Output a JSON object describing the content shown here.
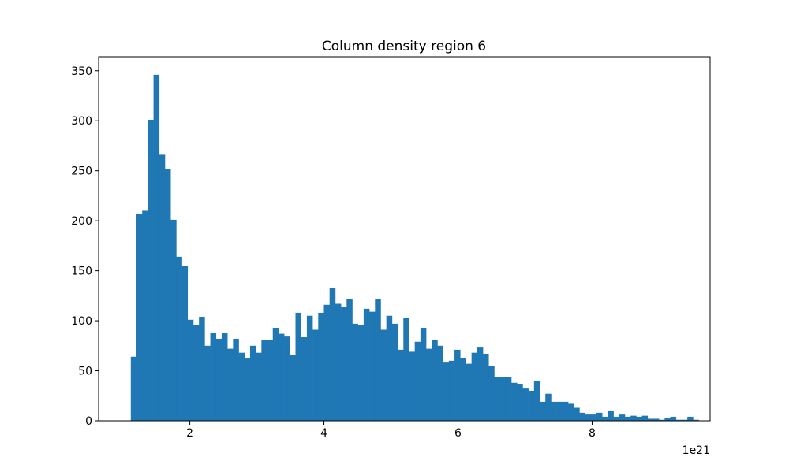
{
  "colors": {
    "bar": "#1f77b4",
    "axes": "#000000",
    "background": "#ffffff"
  },
  "chart_data": {
    "type": "bar",
    "histogram": true,
    "title": "Column density region 6",
    "xlabel": "",
    "ylabel": "",
    "x_offset_text": "1e21",
    "xlim": [
      0.64,
      9.76
    ],
    "ylim": [
      0,
      364
    ],
    "xticks": [
      2,
      4,
      6,
      8
    ],
    "yticks": [
      0,
      50,
      100,
      150,
      200,
      250,
      300,
      350
    ],
    "legend": "none",
    "grid": false,
    "bin_start": 1.12,
    "bin_width": 0.0847,
    "values": [
      64,
      207,
      210,
      301,
      346,
      266,
      252,
      201,
      164,
      155,
      101,
      96,
      104,
      75,
      88,
      82,
      88,
      72,
      82,
      68,
      63,
      75,
      68,
      81,
      81,
      93,
      87,
      85,
      66,
      108,
      84,
      105,
      91,
      108,
      116,
      133,
      117,
      114,
      122,
      97,
      96,
      112,
      109,
      122,
      91,
      105,
      97,
      71,
      103,
      69,
      79,
      93,
      72,
      81,
      75,
      59,
      60,
      71,
      63,
      57,
      68,
      74,
      67,
      55,
      44,
      44,
      44,
      38,
      37,
      33,
      30,
      40,
      19,
      27,
      19,
      19,
      19,
      17,
      13,
      8,
      7,
      7,
      8,
      4,
      10,
      4,
      7,
      4,
      5,
      4,
      5,
      2,
      2,
      1,
      3,
      4,
      1,
      1,
      4,
      1
    ]
  }
}
